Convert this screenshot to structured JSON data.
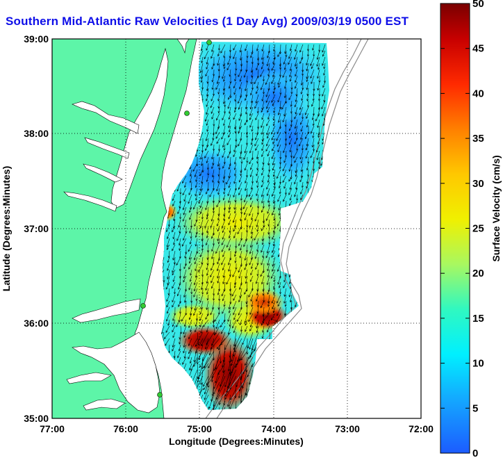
{
  "title": "Southern Mid-Atlantic Raw Velocities (1 Day Avg) 2009/03/19 0500 EST",
  "x_axis": {
    "label": "Longitude (Degrees:Minutes)",
    "ticks": [
      "77:00",
      "76:00",
      "75:00",
      "74:00",
      "73:00",
      "72:00"
    ]
  },
  "y_axis": {
    "label": "Latitude (Degrees:Minutes)",
    "ticks": [
      "39:00",
      "38:00",
      "37:00",
      "36:00",
      "35:00"
    ]
  },
  "colorbar": {
    "label": "Surface Velocity (cm/s)",
    "ticks": [
      "50",
      "45",
      "40",
      "35",
      "30",
      "25",
      "20",
      "15",
      "10",
      "5",
      "0"
    ],
    "min": 0,
    "max": 50
  },
  "map": {
    "lon_range": [
      -77,
      -72
    ],
    "lat_range": [
      35,
      39
    ],
    "grid": true,
    "land_color": "#5df5a8",
    "water_color": "#ffffff",
    "station_color": "#33cc33"
  }
}
